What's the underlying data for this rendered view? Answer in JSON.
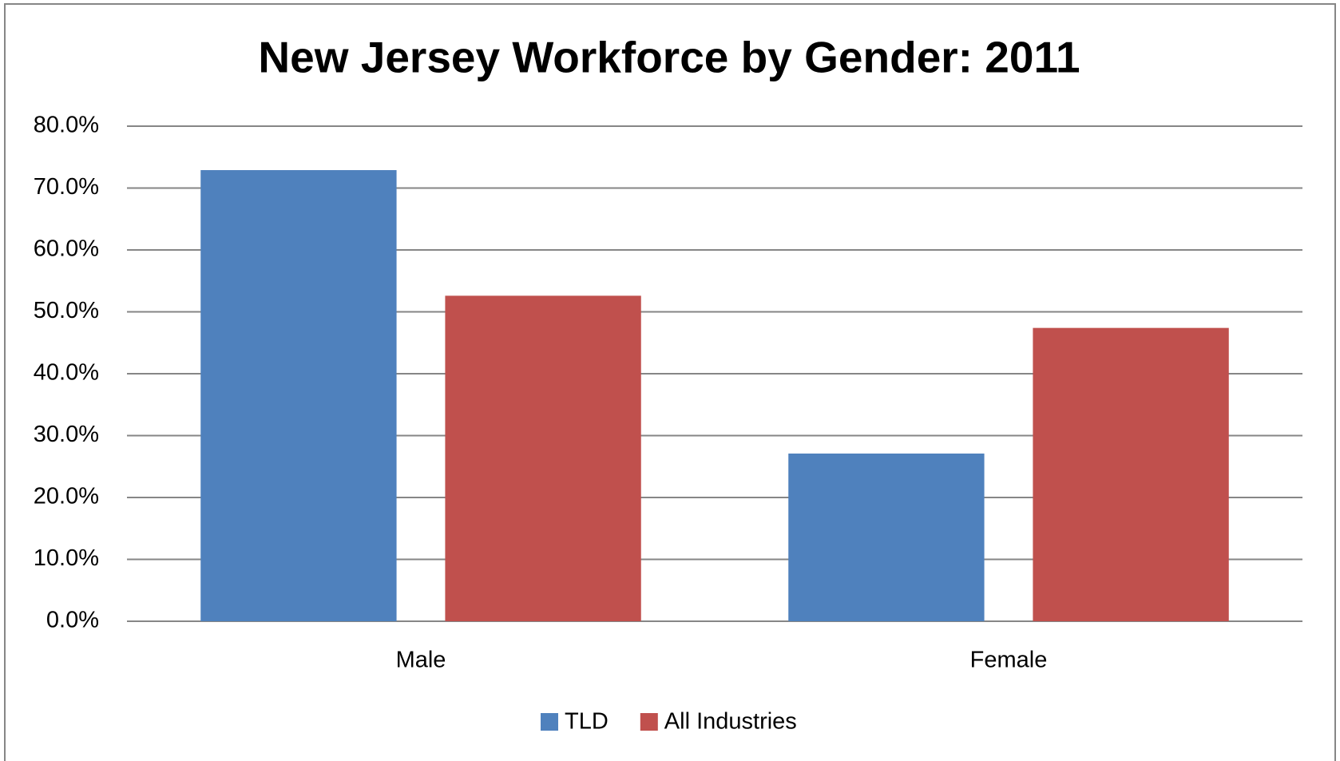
{
  "chart_data": {
    "type": "bar",
    "title": "New Jersey Workforce by Gender: 2011",
    "categories": [
      "Male",
      "Female"
    ],
    "series": [
      {
        "name": "TLD",
        "color": "#4f81bd",
        "values": [
          72.9,
          27.1
        ]
      },
      {
        "name": "All Industries",
        "color": "#c0504d",
        "values": [
          52.6,
          47.4
        ]
      }
    ],
    "ylim": [
      0,
      80
    ],
    "yticks": [
      {
        "value": 0,
        "label": "0.0%"
      },
      {
        "value": 10,
        "label": "10.0%"
      },
      {
        "value": 20,
        "label": "20.0%"
      },
      {
        "value": 30,
        "label": "30.0%"
      },
      {
        "value": 40,
        "label": "40.0%"
      },
      {
        "value": 50,
        "label": "50.0%"
      },
      {
        "value": 60,
        "label": "60.0%"
      },
      {
        "value": 70,
        "label": "70.0%"
      },
      {
        "value": 80,
        "label": "80.0%"
      }
    ],
    "grid": true,
    "legend": "bottom"
  }
}
